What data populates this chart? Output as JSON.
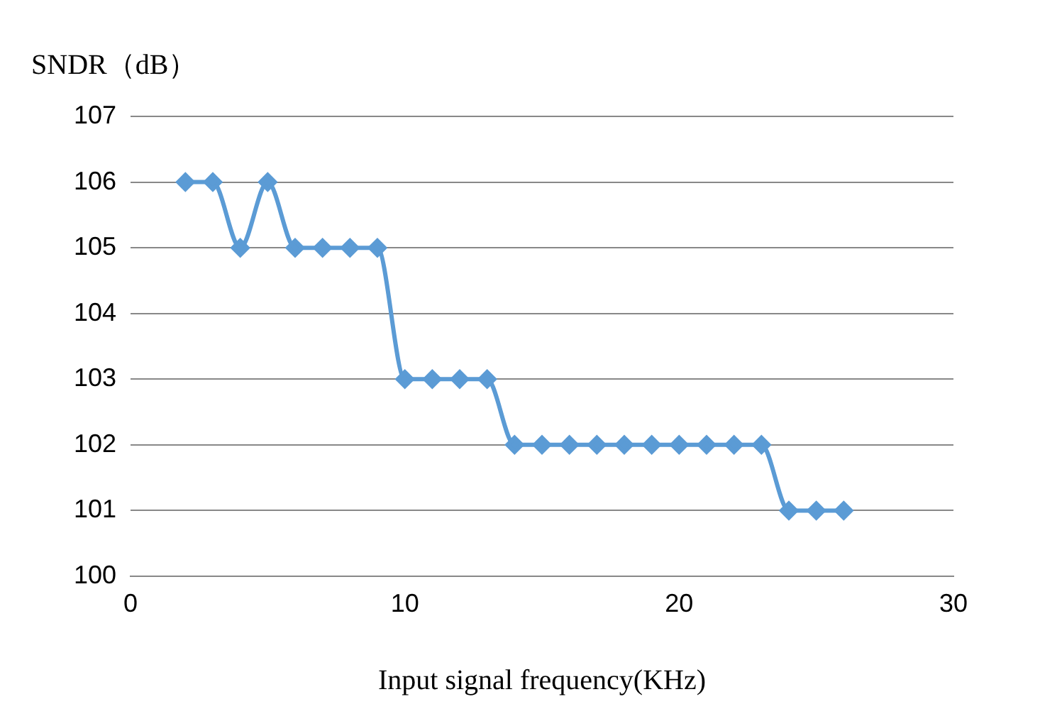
{
  "chart_data": {
    "type": "line",
    "xlabel": "Input signal frequency(KHz)",
    "ylabel": "SNDR（dB）",
    "x": [
      2,
      3,
      4,
      5,
      6,
      7,
      8,
      9,
      10,
      11,
      12,
      13,
      14,
      15,
      16,
      17,
      18,
      19,
      20,
      21,
      22,
      23,
      24,
      25,
      26
    ],
    "series": [
      {
        "color": "#5b9bd5",
        "values": [
          106,
          106,
          105,
          106,
          105,
          105,
          105,
          105,
          103,
          103,
          103,
          103,
          102,
          102,
          102,
          102,
          102,
          102,
          102,
          102,
          102,
          102,
          101,
          101,
          101
        ]
      }
    ],
    "xlim": [
      0,
      30
    ],
    "xticks": [
      0,
      10,
      20,
      30
    ],
    "ylim": [
      100,
      107
    ],
    "yticks": [
      100,
      101,
      102,
      103,
      104,
      105,
      106,
      107
    ],
    "grid": "y",
    "legend": false,
    "marker": "diamond",
    "line_style": "solid"
  }
}
